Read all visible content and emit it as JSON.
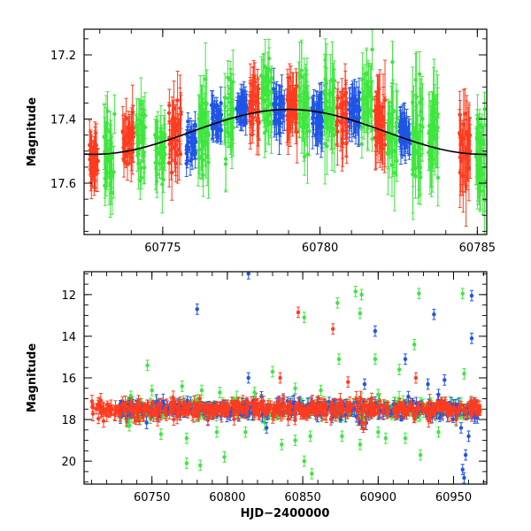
{
  "chart_data": [
    {
      "type": "scatter",
      "title": "",
      "xlabel": "",
      "ylabel": "Magnitude",
      "xlim": [
        60772.5,
        60785.3
      ],
      "ylim": [
        17.76,
        17.12
      ],
      "y_inverted": true,
      "grid": false,
      "xticks": [
        "60775",
        "60780",
        "60785"
      ],
      "xtick_values": [
        60775,
        60780,
        60785
      ],
      "yticks": [
        "17.2",
        "17.4",
        "17.6"
      ],
      "ytick_values": [
        17.2,
        17.4,
        17.6
      ],
      "colors": {
        "red": "#ff3b1f",
        "green": "#3ee63e",
        "blue": "#1f55e6",
        "model": "#000000"
      },
      "model_curve": {
        "description": "black sinusoidal fit",
        "mean": 17.44,
        "amplitude": 0.07,
        "peak_x": 60779.0,
        "period": 12.4
      },
      "clusters": [
        {
          "x": 60772.8,
          "width": 0.3,
          "color": "red",
          "center": 17.53,
          "spread": 0.05,
          "err": 0.05
        },
        {
          "x": 60773.3,
          "width": 0.35,
          "color": "green",
          "center": 17.52,
          "spread": 0.1,
          "err": 0.06
        },
        {
          "x": 60773.9,
          "width": 0.35,
          "color": "red",
          "center": 17.46,
          "spread": 0.06,
          "err": 0.05
        },
        {
          "x": 60774.3,
          "width": 0.3,
          "color": "green",
          "center": 17.47,
          "spread": 0.08,
          "err": 0.05
        },
        {
          "x": 60774.9,
          "width": 0.35,
          "color": "green",
          "center": 17.5,
          "spread": 0.08,
          "err": 0.05
        },
        {
          "x": 60775.4,
          "width": 0.4,
          "color": "red",
          "center": 17.44,
          "spread": 0.08,
          "err": 0.06
        },
        {
          "x": 60775.9,
          "width": 0.3,
          "color": "blue",
          "center": 17.48,
          "spread": 0.05,
          "err": 0.03
        },
        {
          "x": 60776.3,
          "width": 0.35,
          "color": "green",
          "center": 17.43,
          "spread": 0.12,
          "err": 0.07
        },
        {
          "x": 60776.7,
          "width": 0.35,
          "color": "blue",
          "center": 17.4,
          "spread": 0.04,
          "err": 0.03
        },
        {
          "x": 60777.1,
          "width": 0.3,
          "color": "green",
          "center": 17.38,
          "spread": 0.1,
          "err": 0.06
        },
        {
          "x": 60777.5,
          "width": 0.35,
          "color": "blue",
          "center": 17.37,
          "spread": 0.04,
          "err": 0.03
        },
        {
          "x": 60777.9,
          "width": 0.35,
          "color": "red",
          "center": 17.35,
          "spread": 0.07,
          "err": 0.06
        },
        {
          "x": 60778.3,
          "width": 0.35,
          "color": "green",
          "center": 17.32,
          "spread": 0.1,
          "err": 0.06
        },
        {
          "x": 60778.7,
          "width": 0.35,
          "color": "blue",
          "center": 17.37,
          "spread": 0.05,
          "err": 0.04
        },
        {
          "x": 60779.1,
          "width": 0.35,
          "color": "red",
          "center": 17.36,
          "spread": 0.07,
          "err": 0.06
        },
        {
          "x": 60779.5,
          "width": 0.35,
          "color": "green",
          "center": 17.35,
          "spread": 0.1,
          "err": 0.06
        },
        {
          "x": 60779.9,
          "width": 0.35,
          "color": "blue",
          "center": 17.39,
          "spread": 0.05,
          "err": 0.05
        },
        {
          "x": 60780.3,
          "width": 0.35,
          "color": "green",
          "center": 17.36,
          "spread": 0.1,
          "err": 0.07
        },
        {
          "x": 60780.7,
          "width": 0.35,
          "color": "red",
          "center": 17.4,
          "spread": 0.08,
          "err": 0.06
        },
        {
          "x": 60781.1,
          "width": 0.35,
          "color": "blue",
          "center": 17.38,
          "spread": 0.05,
          "err": 0.04
        },
        {
          "x": 60781.5,
          "width": 0.35,
          "color": "green",
          "center": 17.35,
          "spread": 0.1,
          "err": 0.06
        },
        {
          "x": 60781.9,
          "width": 0.35,
          "color": "red",
          "center": 17.42,
          "spread": 0.09,
          "err": 0.07
        },
        {
          "x": 60782.3,
          "width": 0.35,
          "color": "green",
          "center": 17.42,
          "spread": 0.12,
          "err": 0.07
        },
        {
          "x": 60782.7,
          "width": 0.35,
          "color": "blue",
          "center": 17.45,
          "spread": 0.05,
          "err": 0.04
        },
        {
          "x": 60783.1,
          "width": 0.35,
          "color": "green",
          "center": 17.48,
          "spread": 0.15,
          "err": 0.08
        },
        {
          "x": 60783.6,
          "width": 0.3,
          "color": "green",
          "center": 17.44,
          "spread": 0.1,
          "err": 0.07
        },
        {
          "x": 60784.6,
          "width": 0.35,
          "color": "red",
          "center": 17.5,
          "spread": 0.08,
          "err": 0.07
        },
        {
          "x": 60785.1,
          "width": 0.3,
          "color": "green",
          "center": 17.52,
          "spread": 0.1,
          "err": 0.07
        }
      ]
    },
    {
      "type": "scatter",
      "title": "",
      "xlabel": "HJD−2400000",
      "ylabel": "Magnitude",
      "xlim": [
        60705,
        60972
      ],
      "ylim": [
        21.1,
        10.9
      ],
      "y_inverted": true,
      "grid": false,
      "xticks": [
        "60750",
        "60800",
        "60850",
        "60900",
        "60950"
      ],
      "xtick_values": [
        60750,
        60800,
        60850,
        60900,
        60950
      ],
      "yticks": [
        "12",
        "14",
        "16",
        "18",
        "20"
      ],
      "ytick_values": [
        12,
        14,
        16,
        18,
        20
      ],
      "colors": {
        "red": "#ff3b1f",
        "green": "#3ee63e",
        "blue": "#1f55e6"
      },
      "baseline": {
        "center": 17.5,
        "spread": 0.35
      },
      "outliers": [
        {
          "x": 60814,
          "y": 11.0,
          "color": "blue"
        },
        {
          "x": 60780,
          "y": 12.7,
          "color": "blue"
        },
        {
          "x": 60847,
          "y": 12.85,
          "color": "red"
        },
        {
          "x": 60851,
          "y": 13.1,
          "color": "green"
        },
        {
          "x": 60870,
          "y": 13.65,
          "color": "red"
        },
        {
          "x": 60873,
          "y": 12.4,
          "color": "green"
        },
        {
          "x": 60885,
          "y": 11.85,
          "color": "green"
        },
        {
          "x": 60889,
          "y": 12.0,
          "color": "green"
        },
        {
          "x": 60888,
          "y": 12.9,
          "color": "green"
        },
        {
          "x": 60898,
          "y": 13.75,
          "color": "blue"
        },
        {
          "x": 60927,
          "y": 11.95,
          "color": "green"
        },
        {
          "x": 60937,
          "y": 12.95,
          "color": "blue"
        },
        {
          "x": 60956,
          "y": 11.95,
          "color": "green"
        },
        {
          "x": 60962,
          "y": 12.05,
          "color": "blue"
        },
        {
          "x": 60962,
          "y": 14.1,
          "color": "blue"
        },
        {
          "x": 60924,
          "y": 14.4,
          "color": "green"
        },
        {
          "x": 60898,
          "y": 15.1,
          "color": "green"
        },
        {
          "x": 60918,
          "y": 15.1,
          "color": "blue"
        },
        {
          "x": 60874,
          "y": 15.1,
          "color": "green"
        },
        {
          "x": 60914,
          "y": 15.6,
          "color": "green"
        },
        {
          "x": 60747,
          "y": 15.4,
          "color": "green"
        },
        {
          "x": 60830,
          "y": 15.7,
          "color": "green"
        },
        {
          "x": 60814,
          "y": 16.0,
          "color": "blue"
        },
        {
          "x": 60835,
          "y": 16.0,
          "color": "red"
        },
        {
          "x": 60880,
          "y": 16.2,
          "color": "red"
        },
        {
          "x": 60891,
          "y": 16.3,
          "color": "blue"
        },
        {
          "x": 60925,
          "y": 16.0,
          "color": "red"
        },
        {
          "x": 60944,
          "y": 16.1,
          "color": "blue"
        },
        {
          "x": 60933,
          "y": 16.3,
          "color": "blue"
        },
        {
          "x": 60957,
          "y": 15.8,
          "color": "green"
        },
        {
          "x": 60750,
          "y": 16.6,
          "color": "green"
        },
        {
          "x": 60770,
          "y": 16.4,
          "color": "green"
        },
        {
          "x": 60783,
          "y": 16.6,
          "color": "green"
        },
        {
          "x": 60795,
          "y": 16.7,
          "color": "green"
        },
        {
          "x": 60818,
          "y": 16.7,
          "color": "green"
        },
        {
          "x": 60845,
          "y": 16.5,
          "color": "green"
        },
        {
          "x": 60862,
          "y": 16.6,
          "color": "green"
        },
        {
          "x": 60900,
          "y": 16.8,
          "color": "green"
        },
        {
          "x": 60920,
          "y": 16.9,
          "color": "blue"
        },
        {
          "x": 60940,
          "y": 16.8,
          "color": "blue"
        },
        {
          "x": 60735,
          "y": 18.3,
          "color": "green"
        },
        {
          "x": 60756,
          "y": 18.7,
          "color": "green"
        },
        {
          "x": 60773,
          "y": 18.9,
          "color": "green"
        },
        {
          "x": 60793,
          "y": 18.6,
          "color": "green"
        },
        {
          "x": 60812,
          "y": 18.6,
          "color": "green"
        },
        {
          "x": 60836,
          "y": 19.2,
          "color": "green"
        },
        {
          "x": 60855,
          "y": 18.8,
          "color": "green"
        },
        {
          "x": 60876,
          "y": 18.8,
          "color": "green"
        },
        {
          "x": 60900,
          "y": 18.6,
          "color": "green"
        },
        {
          "x": 60905,
          "y": 18.9,
          "color": "green"
        },
        {
          "x": 60918,
          "y": 18.9,
          "color": "green"
        },
        {
          "x": 60940,
          "y": 18.6,
          "color": "green"
        },
        {
          "x": 60955,
          "y": 18.4,
          "color": "blue"
        },
        {
          "x": 60960,
          "y": 18.8,
          "color": "blue"
        },
        {
          "x": 60845,
          "y": 19.0,
          "color": "green"
        },
        {
          "x": 60826,
          "y": 18.4,
          "color": "blue"
        },
        {
          "x": 60888,
          "y": 19.2,
          "color": "green"
        },
        {
          "x": 60798,
          "y": 19.8,
          "color": "green"
        },
        {
          "x": 60773,
          "y": 20.1,
          "color": "green"
        },
        {
          "x": 60782,
          "y": 20.2,
          "color": "green"
        },
        {
          "x": 60851,
          "y": 20.0,
          "color": "green"
        },
        {
          "x": 60856,
          "y": 20.6,
          "color": "green"
        },
        {
          "x": 60928,
          "y": 19.7,
          "color": "green"
        },
        {
          "x": 60956,
          "y": 20.4,
          "color": "blue"
        },
        {
          "x": 60958,
          "y": 19.7,
          "color": "blue"
        },
        {
          "x": 60957,
          "y": 20.8,
          "color": "blue"
        }
      ]
    }
  ]
}
